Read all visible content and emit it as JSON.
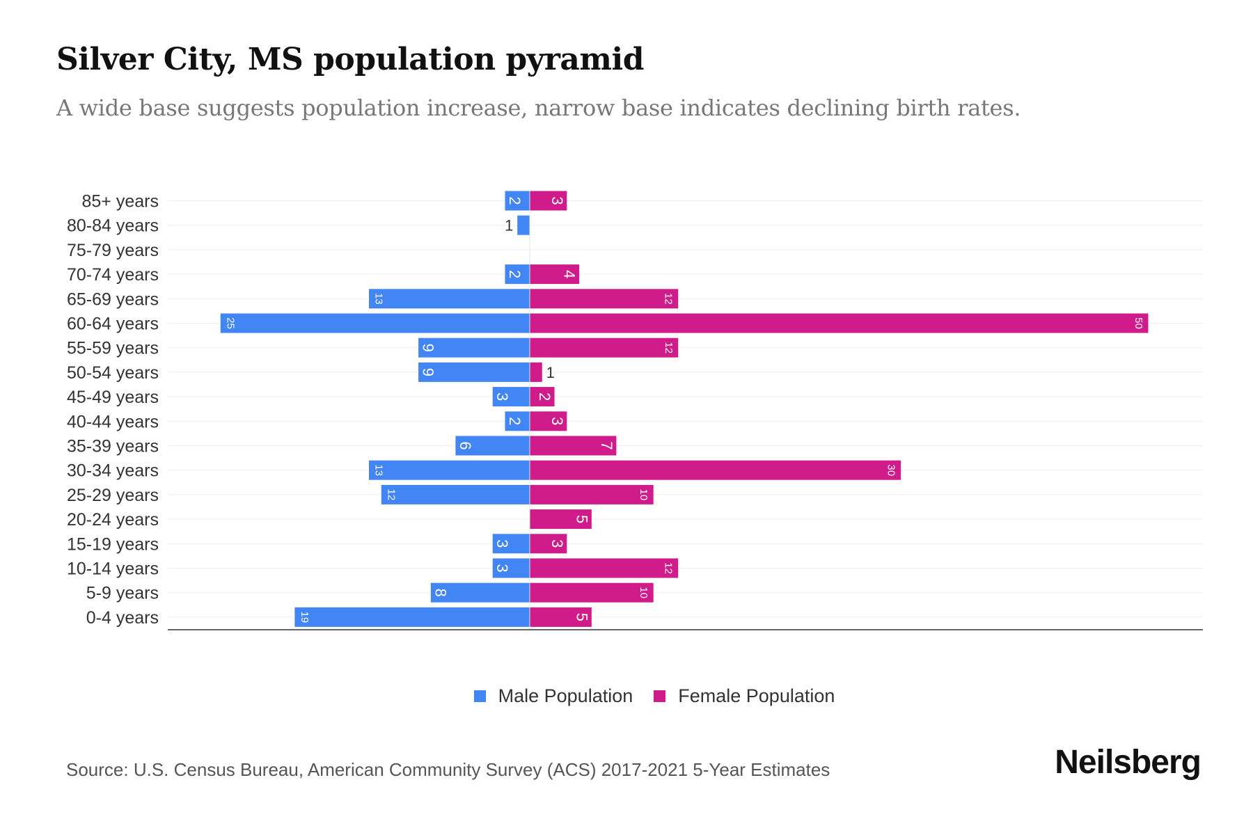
{
  "title": "Silver City, MS population pyramid",
  "subtitle": "A wide base suggests population increase, narrow base indicates declining birth rates.",
  "source": "Source: U.S. Census Bureau, American Community Survey (ACS) 2017-2021 5-Year Estimates",
  "logo": "Neilsberg",
  "colors": {
    "male": "#4285F4",
    "female": "#D01C8B"
  },
  "chart_data": {
    "type": "bar",
    "orientation": "horizontal-pyramid",
    "title": "Silver City, MS population pyramid",
    "categories": [
      "85+ years",
      "80-84 years",
      "75-79 years",
      "70-74 years",
      "65-69 years",
      "60-64 years",
      "55-59 years",
      "50-54 years",
      "45-49 years",
      "40-44 years",
      "35-39 years",
      "30-34 years",
      "25-29 years",
      "20-24 years",
      "15-19 years",
      "10-14 years",
      "5-9 years",
      "0-4 years"
    ],
    "series": [
      {
        "name": "Male Population",
        "values": [
          2,
          1,
          0,
          2,
          13,
          25,
          9,
          9,
          3,
          2,
          6,
          13,
          12,
          0,
          3,
          3,
          8,
          19
        ]
      },
      {
        "name": "Female Population",
        "values": [
          3,
          0,
          0,
          4,
          12,
          50,
          12,
          1,
          2,
          3,
          7,
          30,
          10,
          5,
          3,
          12,
          10,
          5
        ]
      }
    ],
    "xlim": [
      -29,
      54
    ],
    "grid": true,
    "legend": "bottom-center"
  }
}
